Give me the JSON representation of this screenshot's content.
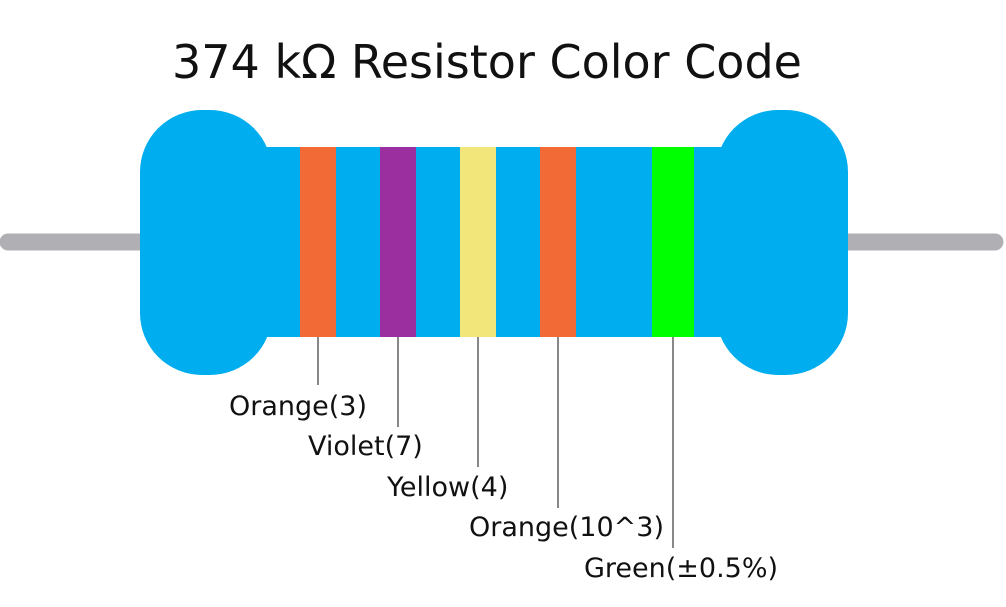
{
  "title": "374 kΩ Resistor Color Code",
  "bands": [
    {
      "label": "Orange(3)",
      "color": "#f26b36"
    },
    {
      "label": "Violet(7)",
      "color": "#9b2fa0"
    },
    {
      "label": "Yellow(4)",
      "color": "#f2e67a"
    },
    {
      "label": "Orange(10^3)",
      "color": "#f26b36"
    },
    {
      "label": "Green(±0.5%)",
      "color": "#00ff00"
    }
  ]
}
